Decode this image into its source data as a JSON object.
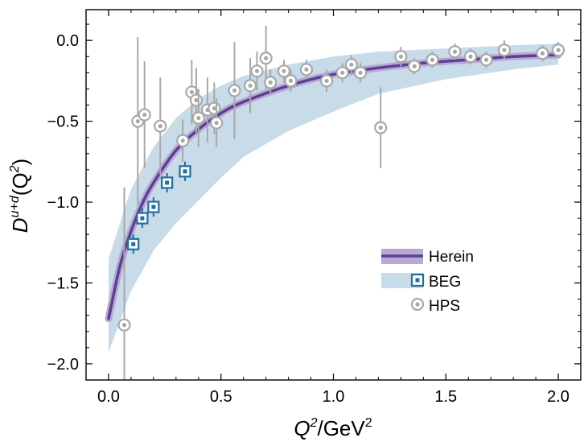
{
  "chart_data": {
    "type": "scatter",
    "title": "",
    "xlabel": {
      "var": "Q",
      "sup": "2",
      "rest": "/GeV",
      "sup2": "2"
    },
    "ylabel": {
      "var": "D",
      "sup": "u+d",
      "rest": "(Q",
      "sup2": "2",
      "tail": ")"
    },
    "xlim": [
      -0.1,
      2.1
    ],
    "ylim": [
      -2.1,
      0.19
    ],
    "xticks": [
      0.0,
      0.5,
      1.0,
      1.5,
      2.0
    ],
    "xtick_labels": [
      "0.0",
      "0.5",
      "1.0",
      "1.5",
      "2.0"
    ],
    "yticks": [
      0.0,
      -0.5,
      -1.0,
      -1.5,
      -2.0
    ],
    "ytick_labels": [
      "0.0",
      "−0.5",
      "−1.0",
      "−1.5",
      "−2.0"
    ],
    "grid": false,
    "legend_position": "bottom-right",
    "colors": {
      "herein_line": "#5b3f94",
      "herein_band": "#b7a9d3",
      "beg_band": "#c7dbe9",
      "beg_marker": "#1f6fa0",
      "hps_marker": "#a8a8a8"
    },
    "series": [
      {
        "name": "Herein",
        "kind": "curve",
        "x": [
          0.0,
          0.05,
          0.1,
          0.15,
          0.2,
          0.3,
          0.4,
          0.5,
          0.6,
          0.8,
          1.0,
          1.2,
          1.4,
          1.6,
          1.8,
          2.0
        ],
        "y": [
          -1.72,
          -1.4,
          -1.18,
          -1.01,
          -0.88,
          -0.68,
          -0.55,
          -0.45,
          -0.38,
          -0.28,
          -0.21,
          -0.17,
          -0.14,
          -0.12,
          -0.1,
          -0.09
        ]
      },
      {
        "name": "BEG",
        "kind": "band+points",
        "band_x": [
          0.0,
          0.1,
          0.2,
          0.3,
          0.4,
          0.5,
          0.6,
          0.8,
          1.0,
          1.2,
          1.5,
          1.8,
          2.0
        ],
        "band_upper": [
          -1.35,
          -0.92,
          -0.66,
          -0.48,
          -0.36,
          -0.28,
          -0.22,
          -0.15,
          -0.1,
          -0.07,
          -0.05,
          -0.03,
          -0.02
        ],
        "band_lower": [
          -1.93,
          -1.55,
          -1.3,
          -1.13,
          -0.99,
          -0.85,
          -0.72,
          -0.56,
          -0.44,
          -0.33,
          -0.24,
          -0.18,
          -0.15
        ],
        "points": [
          {
            "x": 0.11,
            "y": -1.26,
            "err": 0.06
          },
          {
            "x": 0.15,
            "y": -1.1,
            "err": 0.06
          },
          {
            "x": 0.2,
            "y": -1.03,
            "err": 0.06
          },
          {
            "x": 0.26,
            "y": -0.88,
            "err": 0.06
          },
          {
            "x": 0.34,
            "y": -0.81,
            "err": 0.06
          }
        ]
      },
      {
        "name": "HPS",
        "kind": "points",
        "points": [
          {
            "x": 0.07,
            "y": -1.76,
            "err": 0.85
          },
          {
            "x": 0.13,
            "y": -0.5,
            "err": 0.52
          },
          {
            "x": 0.16,
            "y": -0.46,
            "err": 0.33
          },
          {
            "x": 0.23,
            "y": -0.53,
            "err": 0.3
          },
          {
            "x": 0.33,
            "y": -0.62,
            "err": 0.13
          },
          {
            "x": 0.37,
            "y": -0.32,
            "err": 0.2
          },
          {
            "x": 0.39,
            "y": -0.37,
            "err": 0.2
          },
          {
            "x": 0.4,
            "y": -0.48,
            "err": 0.18
          },
          {
            "x": 0.44,
            "y": -0.43,
            "err": 0.2
          },
          {
            "x": 0.47,
            "y": -0.42,
            "err": 0.16
          },
          {
            "x": 0.48,
            "y": -0.51,
            "err": 0.15
          },
          {
            "x": 0.56,
            "y": -0.31,
            "err": 0.3
          },
          {
            "x": 0.63,
            "y": -0.28,
            "err": 0.17
          },
          {
            "x": 0.66,
            "y": -0.19,
            "err": 0.12
          },
          {
            "x": 0.7,
            "y": -0.11,
            "err": 0.2
          },
          {
            "x": 0.72,
            "y": -0.26,
            "err": 0.08
          },
          {
            "x": 0.78,
            "y": -0.19,
            "err": 0.07
          },
          {
            "x": 0.81,
            "y": -0.25,
            "err": 0.07
          },
          {
            "x": 0.88,
            "y": -0.18,
            "err": 0.06
          },
          {
            "x": 0.97,
            "y": -0.25,
            "err": 0.07
          },
          {
            "x": 1.04,
            "y": -0.2,
            "err": 0.06
          },
          {
            "x": 1.08,
            "y": -0.15,
            "err": 0.06
          },
          {
            "x": 1.12,
            "y": -0.2,
            "err": 0.06
          },
          {
            "x": 1.21,
            "y": -0.54,
            "err": 0.25
          },
          {
            "x": 1.3,
            "y": -0.1,
            "err": 0.06
          },
          {
            "x": 1.36,
            "y": -0.16,
            "err": 0.05
          },
          {
            "x": 1.44,
            "y": -0.12,
            "err": 0.05
          },
          {
            "x": 1.54,
            "y": -0.07,
            "err": 0.05
          },
          {
            "x": 1.61,
            "y": -0.1,
            "err": 0.05
          },
          {
            "x": 1.68,
            "y": -0.12,
            "err": 0.05
          },
          {
            "x": 1.76,
            "y": -0.06,
            "err": 0.06
          },
          {
            "x": 1.93,
            "y": -0.08,
            "err": 0.05
          },
          {
            "x": 2.0,
            "y": -0.06,
            "err": 0.05
          }
        ]
      }
    ],
    "legend": [
      {
        "key": "herein",
        "label": "Herein"
      },
      {
        "key": "beg",
        "label": "BEG"
      },
      {
        "key": "hps",
        "label": "HPS"
      }
    ]
  }
}
